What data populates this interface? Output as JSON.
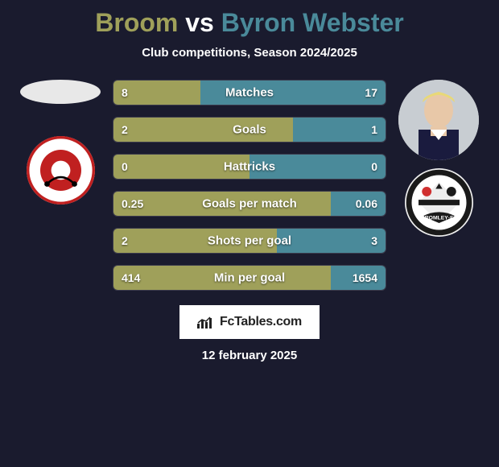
{
  "title": {
    "player1": "Broom",
    "vs": "vs",
    "player2": "Byron Webster",
    "player1_color": "#9fa05a",
    "player2_color": "#4a8a9a"
  },
  "subtitle": "Club competitions, Season 2024/2025",
  "background_color": "#1a1b2e",
  "bars": [
    {
      "label": "Matches",
      "left": "8",
      "right": "17",
      "left_pct": 32,
      "right_pct": 68,
      "invert": false
    },
    {
      "label": "Goals",
      "left": "2",
      "right": "1",
      "left_pct": 66,
      "right_pct": 34,
      "invert": false
    },
    {
      "label": "Hattricks",
      "left": "0",
      "right": "0",
      "left_pct": 50,
      "right_pct": 50,
      "invert": false
    },
    {
      "label": "Goals per match",
      "left": "0.25",
      "right": "0.06",
      "left_pct": 80,
      "right_pct": 20,
      "invert": false
    },
    {
      "label": "Shots per goal",
      "left": "2",
      "right": "3",
      "left_pct": 60,
      "right_pct": 40,
      "invert": true
    },
    {
      "label": "Min per goal",
      "left": "414",
      "right": "1654",
      "left_pct": 80,
      "right_pct": 20,
      "invert": true
    }
  ],
  "bar_style": {
    "height": 32,
    "radius": 6,
    "gap": 14,
    "label_fontsize": 15,
    "val_fontsize": 14,
    "left_color": "#9fa05a",
    "right_color": "#4a8a9a"
  },
  "footer": {
    "brand": "FcTables.com",
    "date": "12 february 2025"
  },
  "icons": {
    "chart": "chart-icon"
  }
}
